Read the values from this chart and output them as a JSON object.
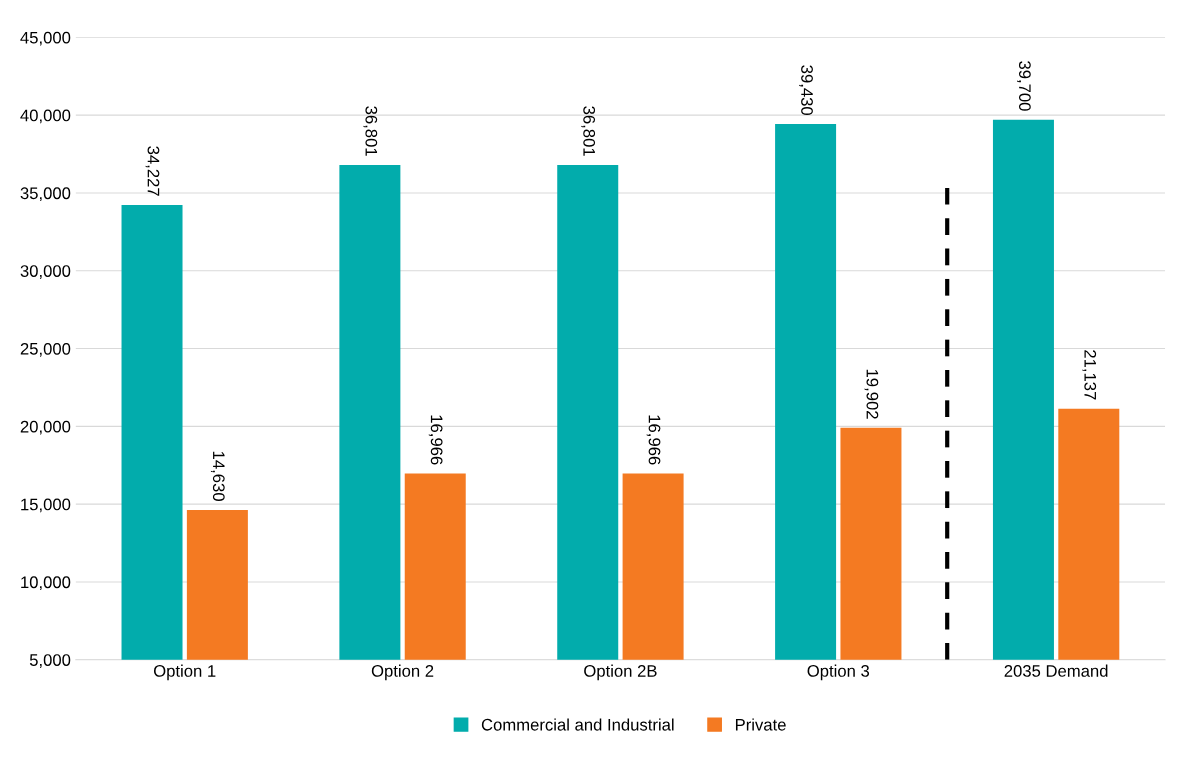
{
  "chart_data": {
    "type": "bar",
    "categories": [
      "Option 1",
      "Option 2",
      "Option 2B",
      "Option 3",
      "2035 Demand"
    ],
    "series": [
      {
        "name": "Commercial and Industrial",
        "color": "#02acac",
        "values": [
          34227,
          36801,
          36801,
          39430,
          39700
        ]
      },
      {
        "name": "Private",
        "color": "#f47a22",
        "values": [
          14630,
          16966,
          16966,
          19902,
          21137
        ]
      }
    ],
    "ylim": [
      5000,
      45000
    ],
    "yticks": [
      {
        "value": 5000,
        "label": "5,000"
      },
      {
        "value": 10000,
        "label": "10,000"
      },
      {
        "value": 15000,
        "label": "15,000"
      },
      {
        "value": 20000,
        "label": "20,000"
      },
      {
        "value": 25000,
        "label": "25,000"
      },
      {
        "value": 30000,
        "label": "30,000"
      },
      {
        "value": 35000,
        "label": "35,000"
      },
      {
        "value": 40000,
        "label": "40,000"
      },
      {
        "value": 45000,
        "label": "45,000"
      }
    ],
    "value_labels": [
      [
        "34,227",
        "36,801",
        "36,801",
        "39,430",
        "39,700"
      ],
      [
        "14,630",
        "16,966",
        "16,966",
        "19,902",
        "21,137"
      ]
    ],
    "grid": "y",
    "legend": "bottom"
  }
}
